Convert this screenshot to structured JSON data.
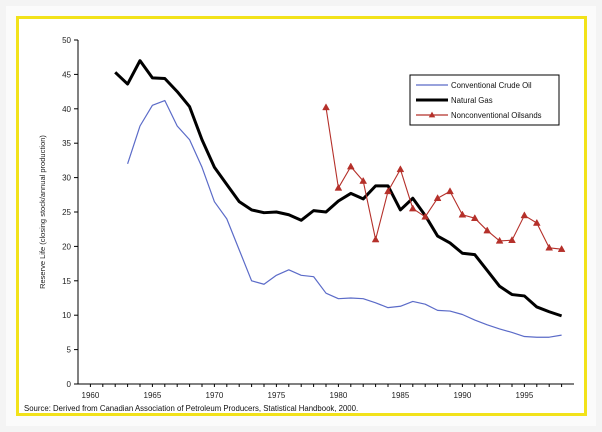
{
  "chart_data": {
    "type": "line",
    "title": "",
    "xlabel": "",
    "ylabel": "Reserve Life (closing stock/annual production)",
    "xlim": [
      1959,
      1999
    ],
    "ylim": [
      0,
      50
    ],
    "x_ticks": [
      1960,
      1965,
      1970,
      1975,
      1980,
      1985,
      1990,
      1995
    ],
    "y_ticks": [
      0,
      5,
      10,
      15,
      20,
      25,
      30,
      35,
      40,
      45,
      50
    ],
    "grid": false,
    "legend_position": "top-right",
    "source_note": "Source: Derived from Canadian Association of Petroleum Producers, Statistical Handbook, 2000.",
    "series": [
      {
        "name": "Conventional Crude Oil",
        "color": "#5b6bc8",
        "marker": "none",
        "points": [
          [
            1963,
            32
          ],
          [
            1964,
            37.5
          ],
          [
            1965,
            40.5
          ],
          [
            1966,
            41.2
          ],
          [
            1967,
            37.5
          ],
          [
            1968,
            35.5
          ],
          [
            1969,
            31.5
          ],
          [
            1970,
            26.5
          ],
          [
            1971,
            24
          ],
          [
            1972,
            19.5
          ],
          [
            1973,
            15
          ],
          [
            1974,
            14.5
          ],
          [
            1975,
            15.8
          ],
          [
            1976,
            16.6
          ],
          [
            1977,
            15.8
          ],
          [
            1978,
            15.6
          ],
          [
            1979,
            13.2
          ],
          [
            1980,
            12.4
          ],
          [
            1981,
            12.5
          ],
          [
            1982,
            12.4
          ],
          [
            1983,
            11.8
          ],
          [
            1984,
            11.1
          ],
          [
            1985,
            11.3
          ],
          [
            1986,
            12
          ],
          [
            1987,
            11.6
          ],
          [
            1988,
            10.7
          ],
          [
            1989,
            10.6
          ],
          [
            1990,
            10.1
          ],
          [
            1991,
            9.3
          ],
          [
            1992,
            8.6
          ],
          [
            1993,
            8
          ],
          [
            1994,
            7.5
          ],
          [
            1995,
            6.9
          ],
          [
            1996,
            6.8
          ],
          [
            1997,
            6.8
          ],
          [
            1998,
            7.1
          ]
        ]
      },
      {
        "name": "Natural Gas",
        "color": "#000000",
        "marker": "none",
        "points": [
          [
            1962,
            45.3
          ],
          [
            1963,
            43.6
          ],
          [
            1964,
            47
          ],
          [
            1965,
            44.5
          ],
          [
            1966,
            44.4
          ],
          [
            1967,
            42.5
          ],
          [
            1968,
            40.3
          ],
          [
            1969,
            35.5
          ],
          [
            1970,
            31.5
          ],
          [
            1971,
            29
          ],
          [
            1972,
            26.5
          ],
          [
            1973,
            25.3
          ],
          [
            1974,
            24.9
          ],
          [
            1975,
            25
          ],
          [
            1976,
            24.6
          ],
          [
            1977,
            23.8
          ],
          [
            1978,
            25.2
          ],
          [
            1979,
            25
          ],
          [
            1980,
            26.6
          ],
          [
            1981,
            27.7
          ],
          [
            1982,
            26.9
          ],
          [
            1983,
            28.8
          ],
          [
            1984,
            28.8
          ],
          [
            1985,
            25.3
          ],
          [
            1986,
            27
          ],
          [
            1987,
            24.5
          ],
          [
            1988,
            21.5
          ],
          [
            1989,
            20.5
          ],
          [
            1990,
            19
          ],
          [
            1991,
            18.8
          ],
          [
            1992,
            16.5
          ],
          [
            1993,
            14.2
          ],
          [
            1994,
            13
          ],
          [
            1995,
            12.8
          ],
          [
            1996,
            11.2
          ],
          [
            1997,
            10.5
          ],
          [
            1998,
            9.9
          ]
        ]
      },
      {
        "name": "Nonconventional Oilsands",
        "color": "#b5302a",
        "marker": "triangle",
        "points": [
          [
            1979,
            40.2
          ],
          [
            1980,
            28.5
          ],
          [
            1981,
            31.6
          ],
          [
            1982,
            29.5
          ],
          [
            1983,
            21
          ],
          [
            1984,
            28
          ],
          [
            1985,
            31.2
          ],
          [
            1986,
            25.5
          ],
          [
            1987,
            24.3
          ],
          [
            1988,
            27
          ],
          [
            1989,
            28
          ],
          [
            1990,
            24.6
          ],
          [
            1991,
            24.1
          ],
          [
            1992,
            22.3
          ],
          [
            1993,
            20.8
          ],
          [
            1994,
            20.9
          ],
          [
            1995,
            24.5
          ],
          [
            1996,
            23.4
          ],
          [
            1997,
            19.8
          ],
          [
            1998,
            19.6
          ]
        ]
      }
    ]
  }
}
